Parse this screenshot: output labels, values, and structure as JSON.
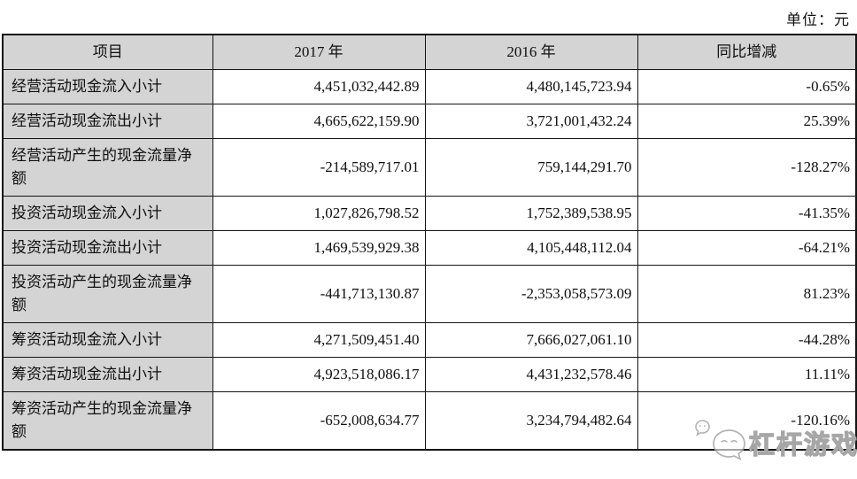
{
  "page": {
    "unit_label": "单位：元"
  },
  "table": {
    "headers": [
      "项目",
      "2017 年",
      "2016 年",
      "同比增减"
    ],
    "rows": [
      {
        "item": "经营活动现金流入小计",
        "y2017": "4,451,032,442.89",
        "y2016": "4,480,145,723.94",
        "yoy": "-0.65%"
      },
      {
        "item": "经营活动现金流出小计",
        "y2017": "4,665,622,159.90",
        "y2016": "3,721,001,432.24",
        "yoy": "25.39%"
      },
      {
        "item": "经营活动产生的现金流量净额",
        "y2017": "-214,589,717.01",
        "y2016": "759,144,291.70",
        "yoy": "-128.27%"
      },
      {
        "item": "投资活动现金流入小计",
        "y2017": "1,027,826,798.52",
        "y2016": "1,752,389,538.95",
        "yoy": "-41.35%"
      },
      {
        "item": "投资活动现金流出小计",
        "y2017": "1,469,539,929.38",
        "y2016": "4,105,448,112.04",
        "yoy": "-64.21%"
      },
      {
        "item": "投资活动产生的现金流量净额",
        "y2017": "-441,713,130.87",
        "y2016": "-2,353,058,573.09",
        "yoy": "81.23%"
      },
      {
        "item": "筹资活动现金流入小计",
        "y2017": "4,271,509,451.40",
        "y2016": "7,666,027,061.10",
        "yoy": "-44.28%"
      },
      {
        "item": "筹资活动现金流出小计",
        "y2017": "4,923,518,086.17",
        "y2016": "4,431,232,578.46",
        "yoy": "11.11%"
      },
      {
        "item": "筹资活动产生的现金流量净额",
        "y2017": "-652,008,634.77",
        "y2016": "3,234,794,482.64",
        "yoy": "-120.16%"
      }
    ]
  },
  "watermark": {
    "text": "杠杆游戏",
    "icon": "chat-bubbles-icon",
    "color": "#a6a6a6"
  },
  "colors": {
    "header_bg": "#d4d4d4",
    "label_bg": "#d4d4d4",
    "border": "#141414",
    "text": "#0f0f0f",
    "watermark": "#a6a6a6"
  }
}
